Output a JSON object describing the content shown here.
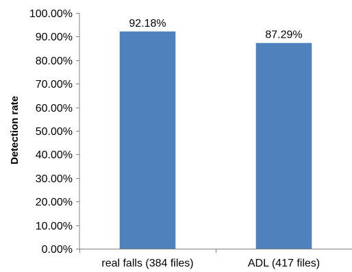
{
  "chart_data": {
    "type": "bar",
    "categories": [
      "real falls (384 files)",
      "ADL (417 files)"
    ],
    "values": [
      92.18,
      87.29
    ],
    "value_labels": [
      "92.18%",
      "87.29%"
    ],
    "title": "",
    "xlabel": "",
    "ylabel": "Detection rate",
    "ylim": [
      0,
      100
    ],
    "ytick_values": [
      0,
      10,
      20,
      30,
      40,
      50,
      60,
      70,
      80,
      90,
      100
    ],
    "ytick_labels": [
      "0.00%",
      "10.00%",
      "20.00%",
      "30.00%",
      "40.00%",
      "50.00%",
      "60.00%",
      "70.00%",
      "80.00%",
      "90.00%",
      "100.00%"
    ],
    "grid": false,
    "legend": "none",
    "colors": {
      "bar": "#4f81bd",
      "axis": "#808080"
    }
  }
}
